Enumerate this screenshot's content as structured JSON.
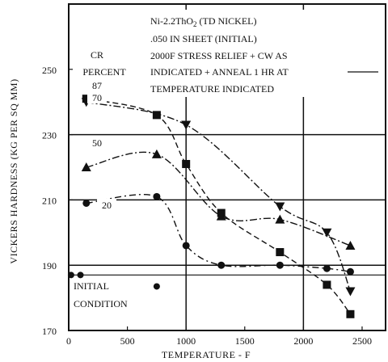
{
  "chart_data": {
    "type": "line",
    "xlabel": "TEMPERATURE - F",
    "ylabel": "VICKERS HARDNESS (KG PER SQ MM)",
    "xlim": [
      0,
      2700
    ],
    "ylim": [
      170,
      270
    ],
    "x_ticks": [
      "0",
      "500",
      "1000",
      "1500",
      "2000",
      "2500"
    ],
    "y_ticks": [
      "170",
      "190",
      "210",
      "230",
      "250"
    ],
    "grid": "major lines at 190, 210, 230 and 1000, 2000",
    "legend": {
      "heading": "CR",
      "heading2": "PERCENT",
      "placement": "upper-left, labels next to curves"
    },
    "annotation": [
      "Ni-2.2ThO",
      "2",
      " (TD NICKEL)",
      ".050 IN SHEET (INITIAL)",
      "2000F STRESS RELIEF + CW AS",
      "INDICATED + ANNEAL 1 HR AT",
      "TEMPERATURE INDICATED"
    ],
    "initial_label": [
      "INITIAL",
      "CONDITION"
    ],
    "series": [
      {
        "name": "87",
        "marker": "square",
        "x": [
          150,
          750,
          1000,
          1300,
          1800,
          2200,
          2400
        ],
        "y": [
          241,
          236,
          221,
          206,
          194,
          184,
          175
        ]
      },
      {
        "name": "70",
        "marker": "triangle-down",
        "x": [
          150,
          1000,
          1800,
          2200,
          2400
        ],
        "y": [
          240,
          233,
          208,
          200,
          182
        ]
      },
      {
        "name": "50",
        "marker": "triangle-up",
        "x": [
          150,
          750,
          1300,
          1800,
          2400
        ],
        "y": [
          220,
          224,
          205,
          204,
          196
        ]
      },
      {
        "name": "20",
        "marker": "circle",
        "x": [
          150,
          750,
          1000,
          1300,
          1800,
          2200,
          2400
        ],
        "y": [
          209,
          211,
          196,
          190,
          190,
          189,
          188
        ]
      }
    ],
    "initial_condition": {
      "y": 187,
      "points_x": [
        20,
        100,
        750
      ]
    }
  }
}
